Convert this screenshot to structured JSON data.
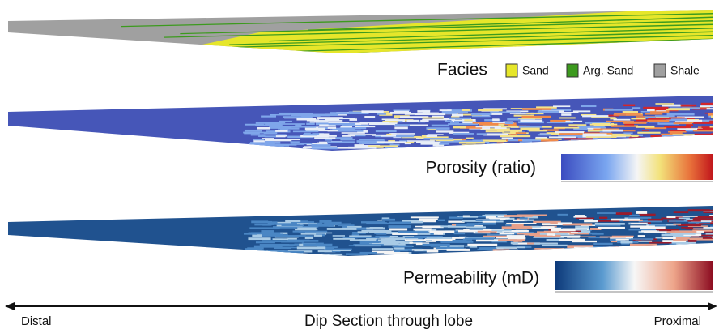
{
  "facies": {
    "title": "Facies",
    "legend": [
      {
        "label": "Sand",
        "color": "#e6e62a"
      },
      {
        "label": "Arg. Sand",
        "color": "#3c9a1e"
      },
      {
        "label": "Shale",
        "color": "#a0a0a0"
      }
    ]
  },
  "porosity": {
    "title": "Porosity (ratio)"
  },
  "permeability": {
    "title": "Permeability (mD)"
  },
  "axis": {
    "left": "Distal",
    "title": "Dip Section through lobe",
    "right": "Proximal"
  }
}
